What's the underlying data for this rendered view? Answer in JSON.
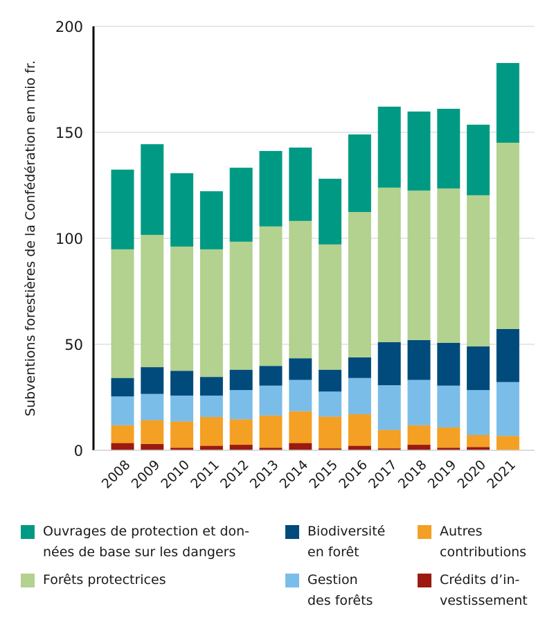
{
  "chart_data": {
    "type": "bar",
    "stacked": true,
    "title": "",
    "xlabel": "",
    "ylabel": "Subventions forestières de la Confédération en mio fr.",
    "ylim": [
      0,
      200
    ],
    "yticks": [
      0,
      50,
      100,
      150,
      200
    ],
    "grid": "horizontal",
    "legend": "bottom",
    "categories": [
      "2008",
      "2009",
      "2010",
      "2011",
      "2012",
      "2013",
      "2014",
      "2015",
      "2016",
      "2017",
      "2018",
      "2019",
      "2020",
      "2021"
    ],
    "series": [
      {
        "name": "Crédits d’in-vestissement",
        "label_lines": [
          "Crédits d’in-",
          "vestissement"
        ],
        "color": "#9a1a10",
        "values": [
          3.4,
          3.0,
          1.2,
          2.1,
          2.6,
          1.2,
          3.4,
          0.9,
          2.1,
          0.9,
          2.6,
          1.2,
          1.5,
          0
        ]
      },
      {
        "name": "Autres contributions",
        "label_lines": [
          "Autres",
          "contributions"
        ],
        "color": "#f4a024",
        "values": [
          8.4,
          11.2,
          12.4,
          13.6,
          12.0,
          15.2,
          15.0,
          15.0,
          14.9,
          8.7,
          9.2,
          9.6,
          5.7,
          6.8
        ]
      },
      {
        "name": "Gestion des forêts",
        "label_lines": [
          "Gestion",
          "des forêts"
        ],
        "color": "#7bbde9",
        "values": [
          13.6,
          12.4,
          12.2,
          10.1,
          13.8,
          14.1,
          14.8,
          11.8,
          17.1,
          21.1,
          21.4,
          19.7,
          21.2,
          25.4
        ]
      },
      {
        "name": "Biodiversité en forêt",
        "label_lines": [
          "Biodiversité",
          "en forêt"
        ],
        "color": "#004b7c",
        "values": [
          8.7,
          12.6,
          11.7,
          8.8,
          9.6,
          9.3,
          10.2,
          10.3,
          9.7,
          20.3,
          18.8,
          20.2,
          20.6,
          25.0
        ]
      },
      {
        "name": "Forêts protectrices",
        "label_lines": [
          "Forêts protectrices"
        ],
        "color": "#b3d18f",
        "values": [
          60.7,
          62.4,
          58.6,
          60.2,
          60.4,
          65.8,
          64.8,
          59.1,
          68.6,
          72.9,
          70.5,
          72.8,
          71.3,
          87.9
        ]
      },
      {
        "name": "Ouvrages de protection et données de base sur les dangers",
        "label_lines": [
          "Ouvrages de protection et don-",
          "nées de base sur les dangers"
        ],
        "color": "#009a84",
        "values": [
          37.6,
          42.8,
          34.6,
          27.4,
          34.9,
          35.6,
          34.6,
          31.0,
          36.6,
          38.2,
          37.3,
          37.6,
          33.3,
          37.6
        ]
      }
    ]
  }
}
